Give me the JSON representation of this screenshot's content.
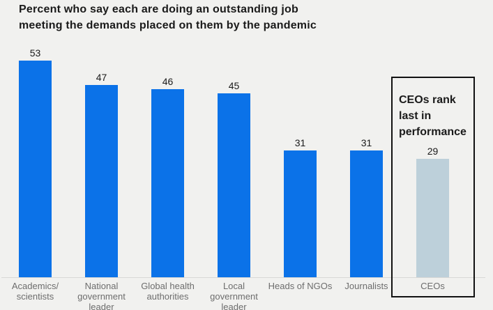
{
  "title_lines": [
    "Percent who say each are doing an outstanding job",
    "meeting the demands placed on them by the pandemic"
  ],
  "chart_data": {
    "type": "bar",
    "title": "Percent who say each are doing an outstanding job meeting the demands placed on them by the pandemic",
    "categories": [
      "Academics/scientists",
      "National government leader",
      "Global health authorities",
      "Local government leader",
      "Heads of NGOs",
      "Journalists",
      "CEOs"
    ],
    "tick_labels": [
      "Academics/\nscientists",
      "National\ngovernment\nleader",
      "Global health\nauthorities",
      "Local\ngovernment\nleader",
      "Heads of NGOs",
      "Journalists",
      "CEOs"
    ],
    "values": [
      53,
      47,
      46,
      45,
      31,
      31,
      29
    ],
    "unit": "percent",
    "ylim": [
      0,
      57
    ],
    "grid": false,
    "legend": "none",
    "bar_colors": [
      "#0b72e8",
      "#0b72e8",
      "#0b72e8",
      "#0b72e8",
      "#0b72e8",
      "#0b72e8",
      "#bdd0da"
    ],
    "annotation": {
      "text": "CEOs rank last in performance",
      "target_category": "CEOs"
    }
  },
  "colors": {
    "background": "#f1f1ef",
    "bar_primary": "#0b72e8",
    "bar_highlight": "#bdd0da",
    "title_text": "#1a1a1a",
    "value_label": "#1a1a1a",
    "tick_label": "#6d6d6d",
    "axis_line": "#d8d8d6",
    "annotation_border": "#111111"
  }
}
